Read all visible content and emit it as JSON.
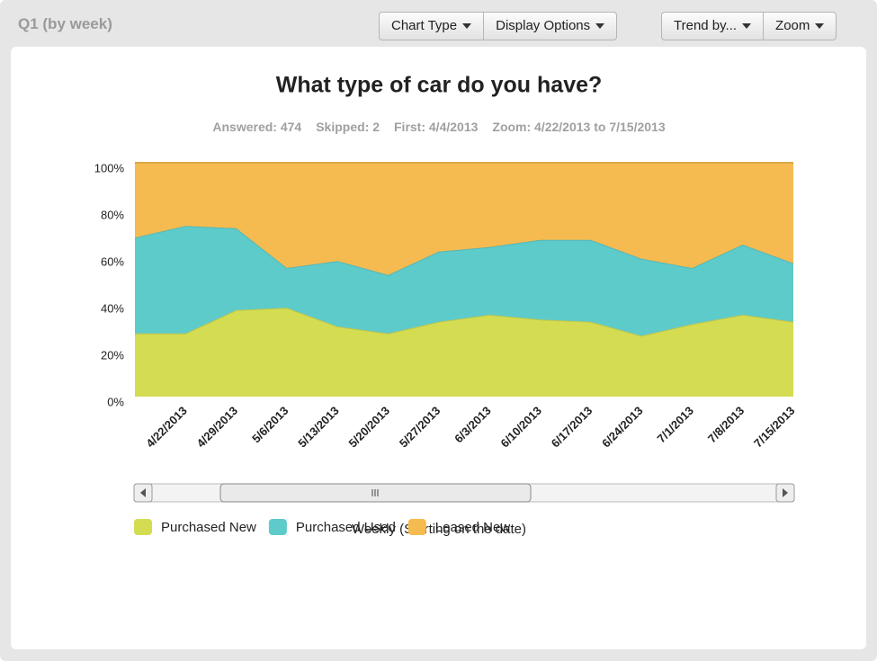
{
  "header": {
    "title": "Q1 (by week)"
  },
  "toolbar": {
    "buttons": [
      "Chart Type",
      "Display Options",
      "Trend by...",
      "Zoom"
    ]
  },
  "stats": [
    "Answered: 474",
    "Skipped: 2",
    "First: 4/4/2013",
    "Zoom: 4/22/2013 to 7/15/2013"
  ],
  "chart_data": {
    "type": "stacked_area",
    "title": "What type of car do you have?",
    "categories": [
      null,
      "4/22/2013",
      "4/29/2013",
      "5/6/2013",
      "5/13/2013",
      "5/20/2013",
      "5/27/2013",
      "6/3/2013",
      "6/10/2013",
      "6/17/2013",
      "6/24/2013",
      "7/1/2013",
      "7/8/2013",
      "7/15/2013"
    ],
    "series": [
      {
        "name": "Purchased New",
        "color": "#d4dc52",
        "values": [
          27,
          27,
          37,
          38,
          30,
          27,
          32,
          35,
          33,
          32,
          26,
          31,
          35,
          32
        ]
      },
      {
        "name": "Purchased Used",
        "color": "#5ecbcb",
        "values": [
          41,
          46,
          35,
          17,
          28,
          25,
          30,
          29,
          34,
          35,
          33,
          24,
          30,
          25
        ]
      },
      {
        "name": "Leased New",
        "color": "#f5bb50",
        "values": [
          32,
          27,
          28,
          45,
          42,
          48,
          38,
          36,
          33,
          33,
          41,
          45,
          35,
          43
        ]
      }
    ],
    "ylim": [
      0,
      100
    ],
    "yticks": [
      {
        "value": 0,
        "label": "0%"
      },
      {
        "value": 20,
        "label": "20%"
      },
      {
        "value": 40,
        "label": "40%"
      },
      {
        "value": 60,
        "label": "60%"
      },
      {
        "value": 80,
        "label": "80%"
      },
      {
        "value": 100,
        "label": "100%"
      }
    ],
    "x_axis_label": "Weekly (Starting on the date)"
  }
}
